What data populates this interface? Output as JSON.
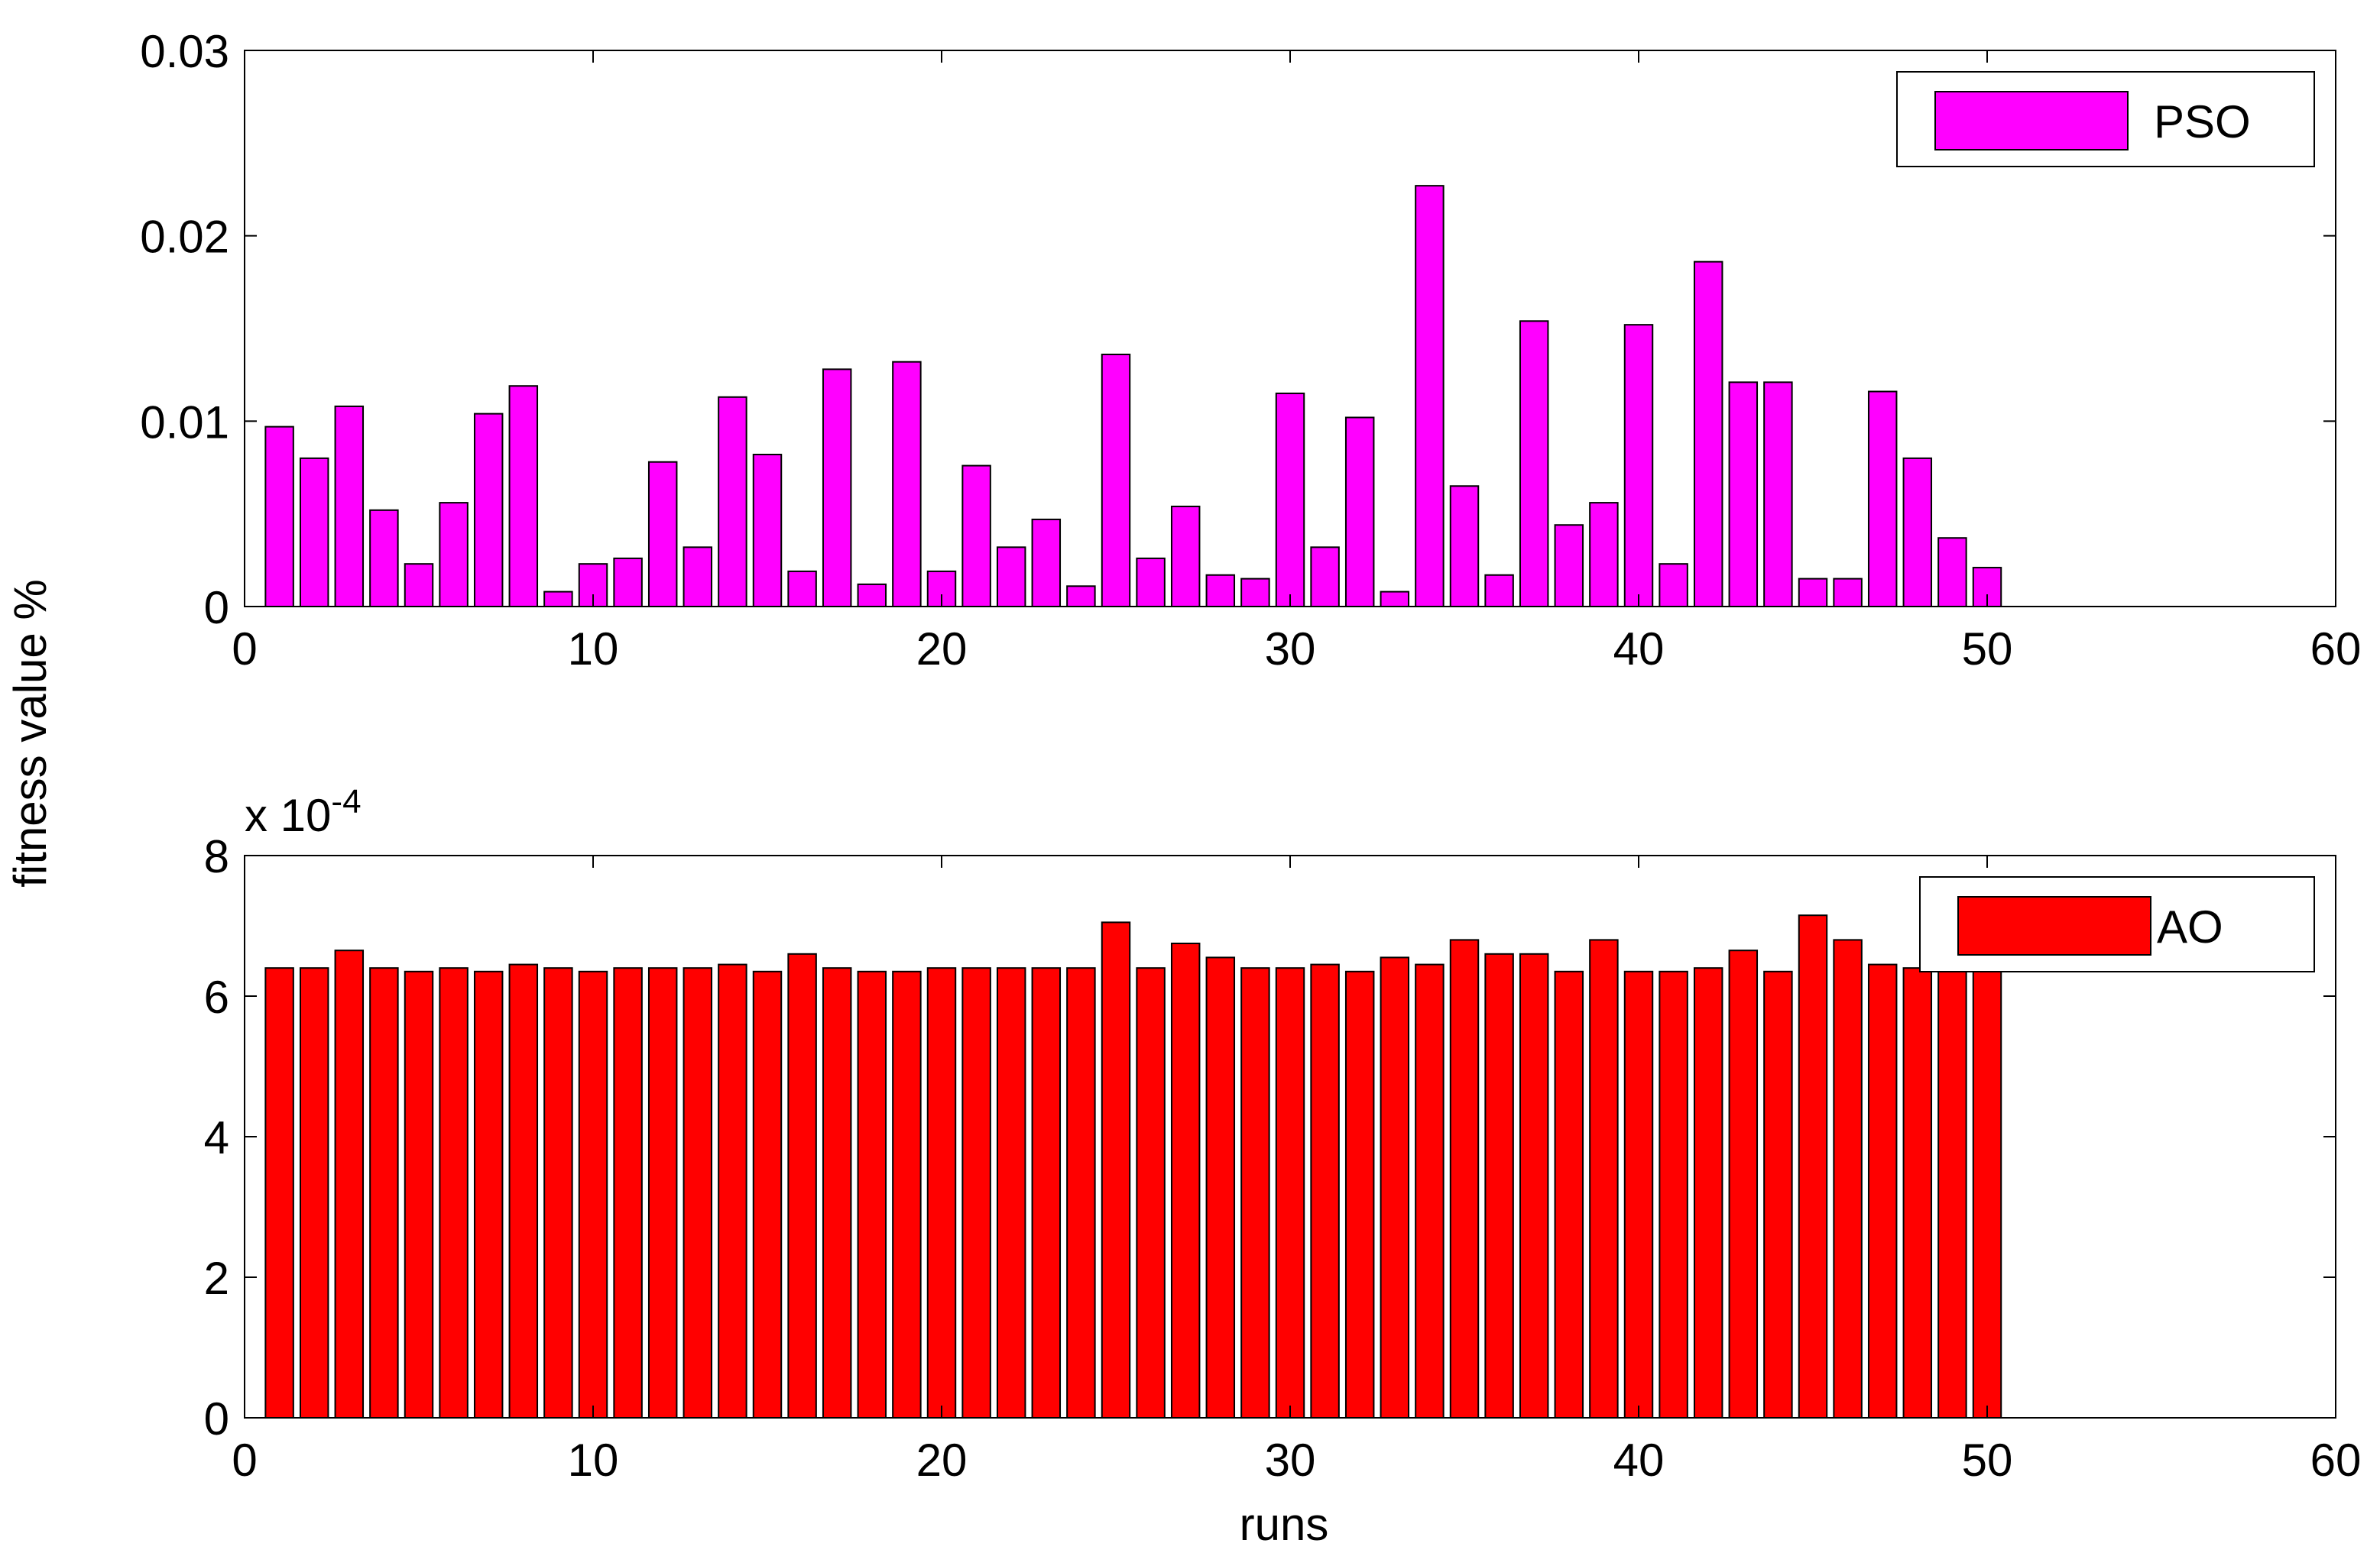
{
  "chart_data": [
    {
      "type": "bar",
      "ylabel": "fitness value %",
      "x": [
        1,
        2,
        3,
        4,
        5,
        6,
        7,
        8,
        9,
        10,
        11,
        12,
        13,
        14,
        15,
        16,
        17,
        18,
        19,
        20,
        21,
        22,
        23,
        24,
        25,
        26,
        27,
        28,
        29,
        30,
        31,
        32,
        33,
        34,
        35,
        36,
        37,
        38,
        39,
        40,
        41,
        42,
        43,
        44,
        45,
        46,
        47,
        48,
        49,
        50
      ],
      "series": [
        {
          "name": "PSO",
          "color": "#ff00ff",
          "values": [
            0.0097,
            0.008,
            0.0108,
            0.0052,
            0.0023,
            0.0056,
            0.0104,
            0.0119,
            0.0008,
            0.0023,
            0.0026,
            0.0078,
            0.0032,
            0.0113,
            0.0082,
            0.0019,
            0.0128,
            0.0012,
            0.0132,
            0.0019,
            0.0076,
            0.0032,
            0.0047,
            0.0011,
            0.0136,
            0.0026,
            0.0054,
            0.0017,
            0.0015,
            0.0115,
            0.0032,
            0.0102,
            0.0008,
            0.0227,
            0.0065,
            0.0017,
            0.0154,
            0.0044,
            0.0056,
            0.0152,
            0.0023,
            0.0186,
            0.0121,
            0.0121,
            0.0015,
            0.0015,
            0.0116,
            0.008,
            0.0037,
            0.0021
          ]
        }
      ],
      "xlim": [
        0,
        60
      ],
      "xticks": [
        0,
        10,
        20,
        30,
        40,
        50,
        60
      ],
      "ylim": [
        0,
        0.03
      ],
      "yticks": [
        0,
        0.01,
        0.02,
        0.03
      ],
      "legend": "northeast"
    },
    {
      "type": "bar",
      "xlabel": "runs",
      "y_multiplier": {
        "base": "x 10",
        "exponent": "-4"
      },
      "x": [
        1,
        2,
        3,
        4,
        5,
        6,
        7,
        8,
        9,
        10,
        11,
        12,
        13,
        14,
        15,
        16,
        17,
        18,
        19,
        20,
        21,
        22,
        23,
        24,
        25,
        26,
        27,
        28,
        29,
        30,
        31,
        32,
        33,
        34,
        35,
        36,
        37,
        38,
        39,
        40,
        41,
        42,
        43,
        44,
        45,
        46,
        47,
        48,
        49,
        50
      ],
      "series": [
        {
          "name": "AO",
          "color": "#ff0000",
          "values": [
            6.4,
            6.4,
            6.65,
            6.4,
            6.35,
            6.4,
            6.35,
            6.45,
            6.4,
            6.35,
            6.4,
            6.4,
            6.4,
            6.45,
            6.35,
            6.6,
            6.4,
            6.35,
            6.35,
            6.4,
            6.4,
            6.4,
            6.4,
            6.4,
            7.05,
            6.4,
            6.75,
            6.55,
            6.4,
            6.4,
            6.45,
            6.35,
            6.55,
            6.45,
            6.8,
            6.6,
            6.6,
            6.35,
            6.8,
            6.35,
            6.35,
            6.4,
            6.65,
            6.35,
            7.15,
            6.8,
            6.45,
            6.4,
            6.4,
            6.4
          ]
        }
      ],
      "xlim": [
        0,
        60
      ],
      "xticks": [
        0,
        10,
        20,
        30,
        40,
        50,
        60
      ],
      "ylim": [
        0,
        8
      ],
      "yticks": [
        0,
        2,
        4,
        6,
        8
      ],
      "legend": "northeast"
    }
  ]
}
